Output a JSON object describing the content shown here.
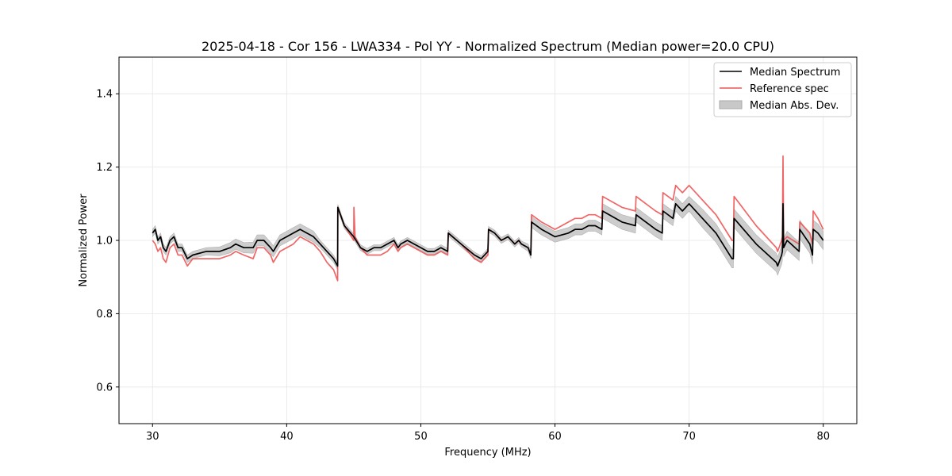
{
  "chart_data": {
    "type": "line",
    "title": "2025-04-18 - Cor 156 - LWA334 - Pol YY - Normalized Spectrum (Median power=20.0 CPU)",
    "xlabel": "Frequency (MHz)",
    "ylabel": "Normalized Power",
    "xlim": [
      27.5,
      82.5
    ],
    "ylim": [
      0.5,
      1.5
    ],
    "xticks": [
      30,
      40,
      50,
      60,
      70,
      80
    ],
    "xtick_labels": [
      "30",
      "40",
      "50",
      "60",
      "70",
      "80"
    ],
    "yticks": [
      0.6,
      0.8,
      1.0,
      1.2,
      1.4
    ],
    "ytick_labels": [
      "0.6",
      "0.8",
      "1.0",
      "1.2",
      "1.4"
    ],
    "grid": true,
    "legend_position": "top-right",
    "series": [
      {
        "name": "Median Spectrum",
        "color": "#000000",
        "x": [
          30.0,
          30.2,
          30.4,
          30.6,
          30.8,
          31.0,
          31.3,
          31.6,
          31.9,
          32.2,
          32.6,
          33.0,
          34.0,
          35.0,
          35.8,
          36.2,
          36.8,
          37.5,
          37.8,
          38.3,
          38.8,
          39.0,
          39.5,
          40.0,
          40.5,
          41.0,
          41.5,
          42.0,
          42.5,
          43.0,
          43.5,
          43.8,
          43.81,
          44.3,
          45.0,
          45.5,
          46.0,
          46.5,
          47.0,
          47.5,
          48.0,
          48.3,
          48.5,
          49.0,
          49.5,
          50.0,
          50.5,
          51.0,
          51.5,
          52.0,
          52.05,
          53.0,
          54.0,
          54.5,
          55.0,
          55.05,
          55.5,
          56.0,
          56.5,
          57.0,
          57.3,
          57.5,
          58.0,
          58.2,
          58.25,
          59.0,
          60.0,
          61.0,
          61.5,
          62.0,
          62.5,
          63.0,
          63.5,
          63.55,
          65.0,
          66.0,
          66.05,
          67.5,
          68.0,
          68.05,
          68.8,
          69.0,
          69.5,
          70.0,
          71.0,
          72.0,
          73.2,
          73.3,
          73.35,
          75.0,
          76.5,
          76.6,
          76.9,
          76.95,
          77.0,
          77.05,
          77.3,
          78.2,
          78.25,
          79.0,
          79.2,
          79.25,
          79.6,
          80.0
        ],
        "values": [
          1.02,
          1.03,
          1.0,
          1.01,
          0.98,
          0.97,
          1.0,
          1.01,
          0.98,
          0.98,
          0.95,
          0.96,
          0.97,
          0.97,
          0.98,
          0.99,
          0.98,
          0.98,
          1.0,
          1.0,
          0.98,
          0.97,
          1.0,
          1.01,
          1.02,
          1.03,
          1.02,
          1.01,
          0.99,
          0.97,
          0.95,
          0.93,
          1.09,
          1.04,
          1.01,
          0.98,
          0.97,
          0.98,
          0.98,
          0.99,
          1.0,
          0.98,
          0.99,
          1.0,
          0.99,
          0.98,
          0.97,
          0.97,
          0.98,
          0.97,
          1.02,
          0.99,
          0.96,
          0.95,
          0.97,
          1.03,
          1.02,
          1.0,
          1.01,
          0.99,
          1.0,
          0.99,
          0.98,
          0.96,
          1.05,
          1.03,
          1.01,
          1.02,
          1.03,
          1.03,
          1.04,
          1.04,
          1.03,
          1.08,
          1.05,
          1.04,
          1.07,
          1.03,
          1.02,
          1.08,
          1.06,
          1.1,
          1.08,
          1.1,
          1.06,
          1.02,
          0.95,
          0.95,
          1.06,
          0.99,
          0.94,
          0.93,
          0.96,
          0.97,
          1.1,
          0.98,
          1.0,
          0.97,
          1.03,
          0.99,
          0.96,
          1.03,
          1.02,
          1.0
        ]
      },
      {
        "name": "Reference spec",
        "color": "#ee5555",
        "x": [
          30.0,
          30.2,
          30.4,
          30.6,
          30.8,
          31.0,
          31.3,
          31.6,
          31.9,
          32.2,
          32.6,
          33.0,
          34.0,
          35.0,
          35.8,
          36.2,
          36.8,
          37.5,
          37.8,
          38.3,
          38.8,
          39.0,
          39.5,
          40.0,
          40.5,
          41.0,
          41.5,
          42.0,
          42.5,
          43.0,
          43.5,
          43.8,
          43.81,
          44.3,
          45.0,
          45.01,
          45.1,
          45.5,
          46.0,
          46.5,
          47.0,
          47.5,
          48.0,
          48.3,
          48.5,
          49.0,
          49.5,
          50.0,
          50.5,
          51.0,
          51.5,
          52.0,
          52.05,
          53.0,
          54.0,
          54.5,
          55.0,
          55.05,
          55.5,
          56.0,
          56.5,
          57.0,
          57.3,
          57.5,
          58.0,
          58.2,
          58.25,
          59.0,
          60.0,
          61.0,
          61.5,
          62.0,
          62.5,
          63.0,
          63.5,
          63.55,
          65.0,
          66.0,
          66.05,
          67.5,
          68.0,
          68.05,
          68.8,
          69.0,
          69.5,
          70.0,
          71.0,
          72.0,
          73.2,
          73.3,
          73.35,
          75.0,
          76.5,
          76.6,
          76.9,
          76.95,
          77.0,
          77.05,
          77.3,
          78.2,
          78.25,
          79.0,
          79.2,
          79.25,
          79.6,
          80.0
        ],
        "values": [
          1.0,
          0.99,
          0.97,
          0.98,
          0.95,
          0.94,
          0.98,
          0.99,
          0.96,
          0.96,
          0.93,
          0.95,
          0.95,
          0.95,
          0.96,
          0.97,
          0.96,
          0.95,
          0.98,
          0.98,
          0.96,
          0.94,
          0.97,
          0.98,
          0.99,
          1.01,
          1.0,
          0.99,
          0.97,
          0.94,
          0.92,
          0.89,
          1.09,
          1.04,
          1.0,
          1.09,
          1.01,
          0.98,
          0.96,
          0.96,
          0.96,
          0.97,
          0.99,
          0.97,
          0.98,
          0.99,
          0.98,
          0.97,
          0.96,
          0.96,
          0.97,
          0.96,
          1.02,
          0.99,
          0.95,
          0.94,
          0.96,
          1.03,
          1.02,
          1.0,
          1.01,
          0.99,
          1.0,
          0.99,
          0.98,
          0.96,
          1.07,
          1.05,
          1.03,
          1.05,
          1.06,
          1.06,
          1.07,
          1.07,
          1.06,
          1.12,
          1.09,
          1.08,
          1.12,
          1.08,
          1.07,
          1.13,
          1.11,
          1.15,
          1.13,
          1.15,
          1.11,
          1.07,
          1.0,
          1.0,
          1.12,
          1.04,
          0.98,
          0.97,
          1.0,
          1.01,
          1.23,
          1.0,
          1.01,
          0.99,
          1.05,
          1.02,
          0.99,
          1.08,
          1.06,
          1.03
        ]
      }
    ],
    "band": {
      "name": "Median Abs. Dev.",
      "color": "#c8c8c8",
      "halfwidth_values": [
        0.01,
        0.01,
        0.01,
        0.01,
        0.01,
        0.01,
        0.01,
        0.01,
        0.01,
        0.01,
        0.01,
        0.01,
        0.01,
        0.012,
        0.014,
        0.014,
        0.014,
        0.015,
        0.015,
        0.015,
        0.015,
        0.015,
        0.015,
        0.015,
        0.015,
        0.015,
        0.015,
        0.015,
        0.01,
        0.01,
        0.01,
        0.01,
        0.008,
        0.008,
        0.008,
        0.008,
        0.008,
        0.008,
        0.008,
        0.008,
        0.008,
        0.008,
        0.008,
        0.008,
        0.008,
        0.008,
        0.008,
        0.008,
        0.008,
        0.008,
        0.008,
        0.008,
        0.008,
        0.008,
        0.008,
        0.008,
        0.008,
        0.008,
        0.008,
        0.008,
        0.008,
        0.008,
        0.01,
        0.01,
        0.015,
        0.015,
        0.015,
        0.015,
        0.015,
        0.015,
        0.015,
        0.015,
        0.015,
        0.02,
        0.02,
        0.02,
        0.02,
        0.02,
        0.02,
        0.02,
        0.02,
        0.02,
        0.02,
        0.02,
        0.025,
        0.025,
        0.025,
        0.025,
        0.025,
        0.025,
        0.025,
        0.025,
        0.025,
        0.025,
        0.025,
        0.025,
        0.025,
        0.025,
        0.025,
        0.025,
        0.025,
        0.025,
        0.025,
        0.025
      ]
    }
  }
}
